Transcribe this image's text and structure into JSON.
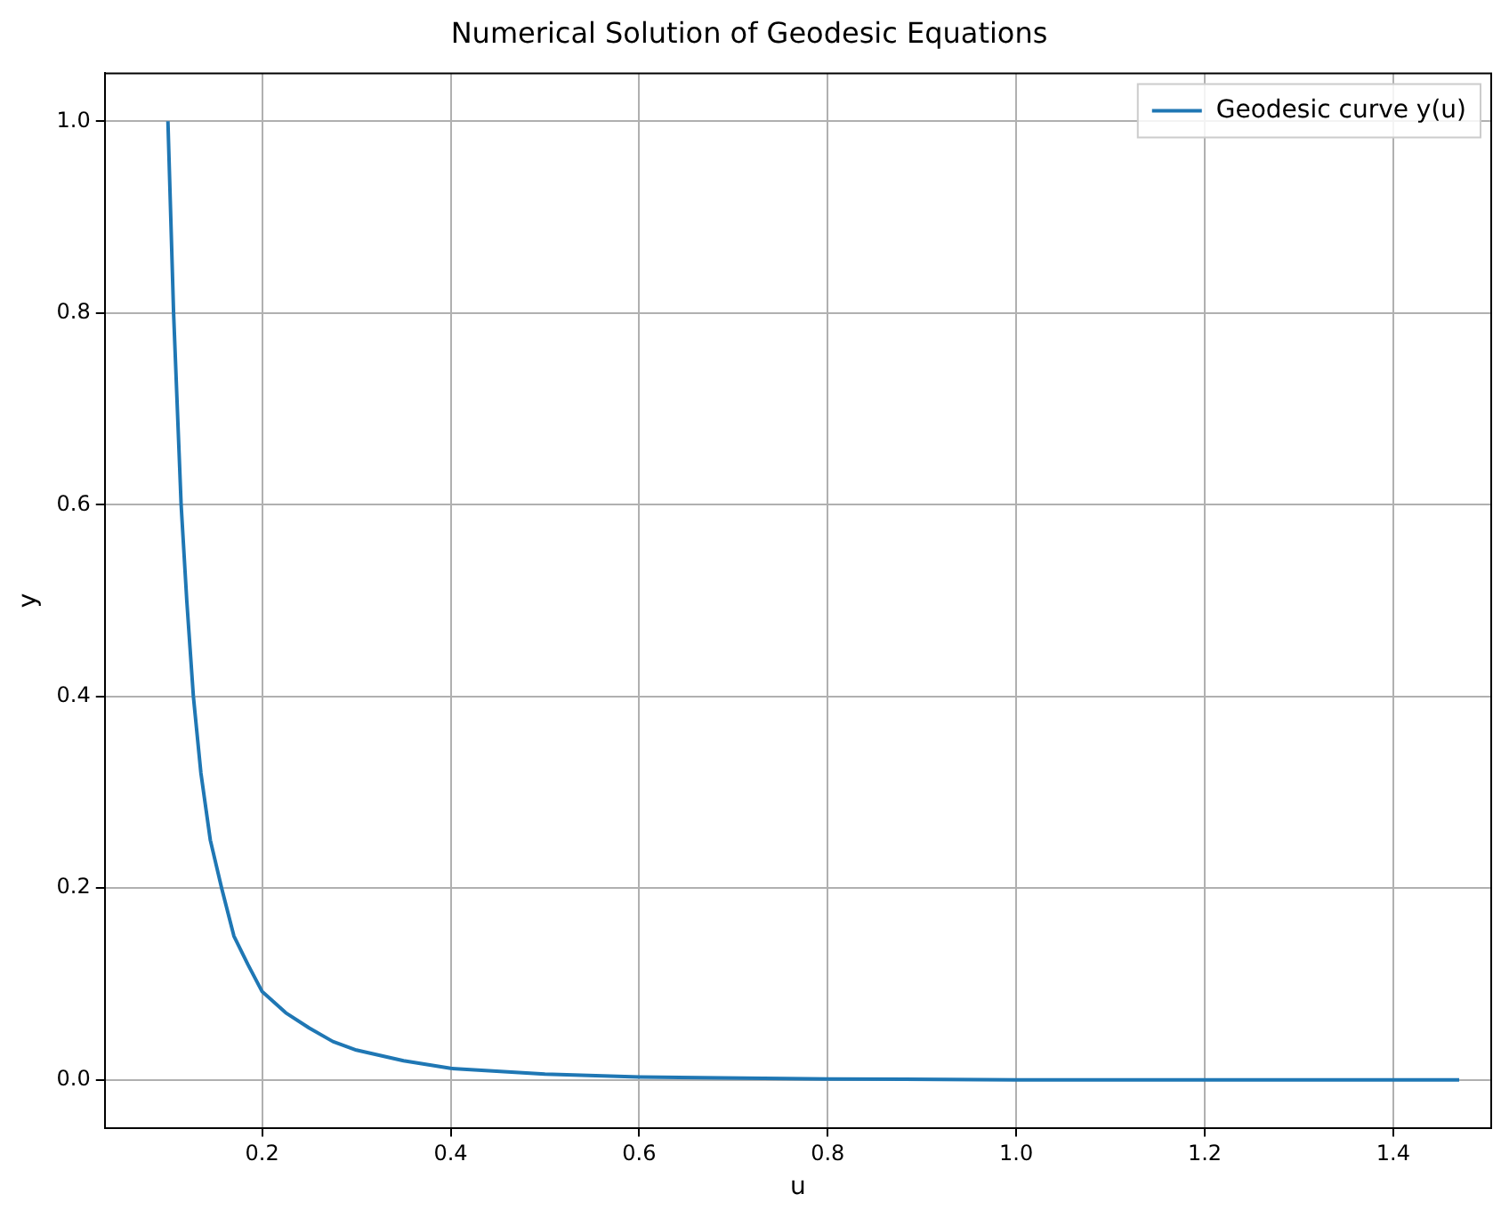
{
  "chart_data": {
    "type": "line",
    "title": "Numerical Solution of Geodesic Equations",
    "xlabel": "u",
    "ylabel": "y",
    "x": [
      0.1,
      0.106,
      0.114,
      0.12,
      0.127,
      0.135,
      0.145,
      0.157,
      0.17,
      0.185,
      0.2,
      0.225,
      0.25,
      0.275,
      0.3,
      0.35,
      0.4,
      0.5,
      0.6,
      0.8,
      1.0,
      1.2,
      1.47
    ],
    "series": [
      {
        "name": "Geodesic curve y(u)",
        "color": "#1f77b4",
        "values": [
          1.0,
          0.8,
          0.6,
          0.5,
          0.4,
          0.32,
          0.25,
          0.2,
          0.15,
          0.12,
          0.092,
          0.07,
          0.054,
          0.04,
          0.031,
          0.02,
          0.012,
          0.006,
          0.003,
          0.001,
          0,
          0,
          0
        ]
      }
    ],
    "xlim": [
      0.033,
      1.504
    ],
    "ylim": [
      -0.05,
      1.05
    ],
    "xticks": [
      {
        "value": 0.2,
        "label": "0.2"
      },
      {
        "value": 0.4,
        "label": "0.4"
      },
      {
        "value": 0.6,
        "label": "0.6"
      },
      {
        "value": 0.8,
        "label": "0.8"
      },
      {
        "value": 1.0,
        "label": "1.0"
      },
      {
        "value": 1.2,
        "label": "1.2"
      },
      {
        "value": 1.4,
        "label": "1.4"
      }
    ],
    "yticks": [
      {
        "value": 0,
        "label": "0.0"
      },
      {
        "value": 0.2,
        "label": "0.2"
      },
      {
        "value": 0.4,
        "label": "0.4"
      },
      {
        "value": 0.6,
        "label": "0.6"
      },
      {
        "value": 0.8,
        "label": "0.8"
      },
      {
        "value": 1.0,
        "label": "1.0"
      }
    ],
    "grid": true,
    "legend": "top right",
    "marker": "none",
    "line_style": "solid"
  }
}
